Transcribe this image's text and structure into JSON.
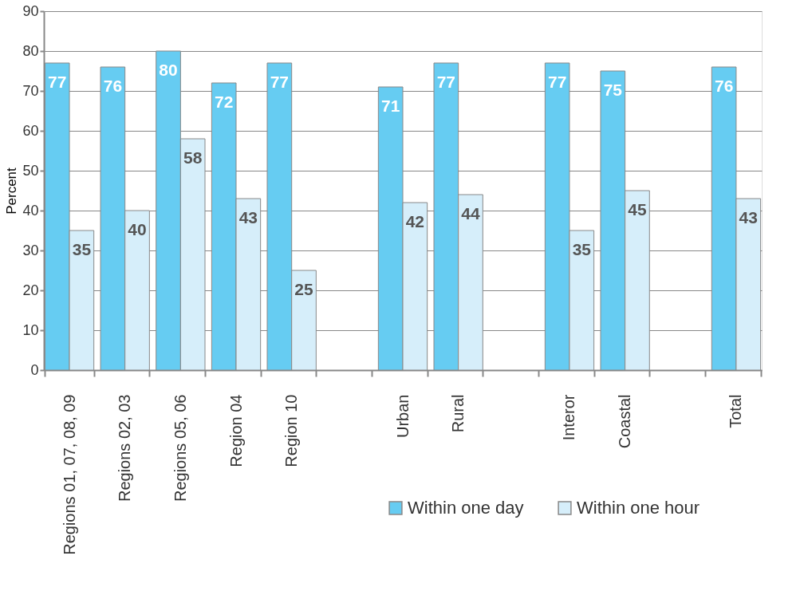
{
  "chart_data": {
    "type": "bar",
    "ylabel": "Percent",
    "categories": [
      "Regions 01, 07, 08, 09",
      "Regions 02, 03",
      "Regions 05, 06",
      "Region 04",
      "Region 10",
      null,
      "Urban",
      "Rural",
      null,
      "Interor",
      "Coastal",
      null,
      "Total"
    ],
    "series": [
      {
        "name": "Within one day",
        "color": "#66ccf2",
        "values": [
          77,
          76,
          80,
          72,
          77,
          null,
          71,
          77,
          null,
          77,
          75,
          null,
          76
        ]
      },
      {
        "name": "Within one hour",
        "color": "#d6eefa",
        "values": [
          35,
          40,
          58,
          43,
          25,
          null,
          42,
          44,
          null,
          35,
          45,
          null,
          43
        ]
      }
    ],
    "ylim": [
      0,
      90
    ],
    "yticks": [
      0,
      10,
      20,
      30,
      40,
      50,
      60,
      70,
      80,
      90
    ],
    "grid": "y",
    "legend": "bottom right",
    "data_labels": true
  }
}
